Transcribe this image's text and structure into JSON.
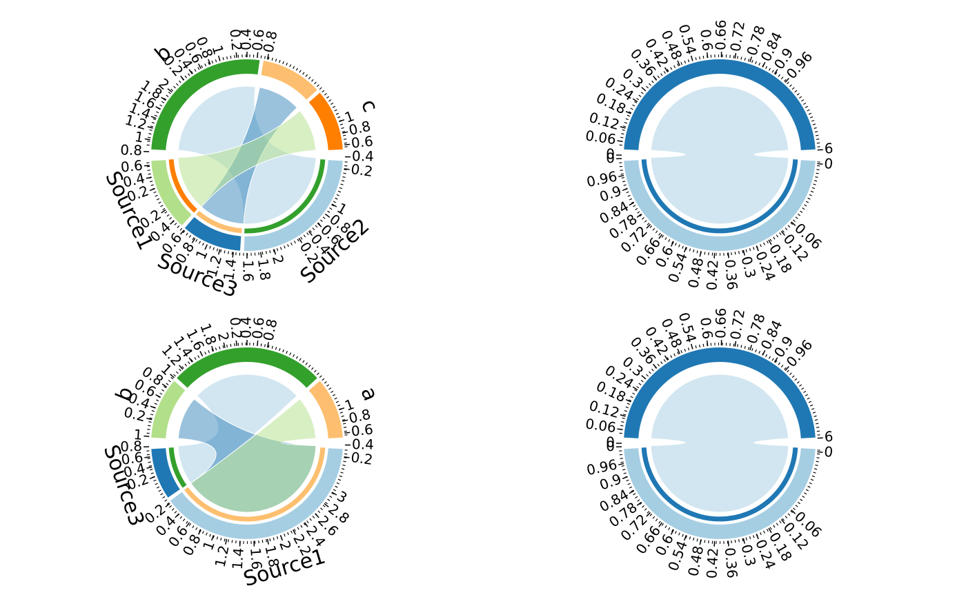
{
  "colors": {
    "dark_green": "#33a02c",
    "light_green": "#b2df8a",
    "dark_orange": "#ff7f00",
    "light_orange": "#fdbf6f",
    "dark_blue": "#1f78b4",
    "light_blue": "#a6cee3",
    "link_blue": "#a6cee3",
    "link_blue_strong": "#1f78b4",
    "link_green": "#b2df8a"
  },
  "chart_data": [
    {
      "type": "chord",
      "panel": "top-left",
      "upper_sectors": [
        {
          "label": "b",
          "value": 1,
          "color": "#33a02c"
        },
        {
          "label": "",
          "value": 0.4,
          "color": "#fdbf6f"
        },
        {
          "label": "c",
          "value": 0.4,
          "color": "#ff7f00"
        }
      ],
      "lower_sectors": [
        {
          "label": "Source1",
          "value": 0.6,
          "color": "#b2df8a"
        },
        {
          "label": "Source3",
          "value": 0.5,
          "color": "#1f78b4"
        },
        {
          "label": "Source2",
          "value": 1.2,
          "color": "#a6cee3"
        }
      ],
      "links": [
        {
          "from": "Source2",
          "to": "b",
          "value": 1
        },
        {
          "from": "Source3",
          "to": "",
          "value": 0.3
        },
        {
          "from": "Source1",
          "to": "c",
          "value": 0.4
        }
      ],
      "upper_ticks_text": "0.2 0.4 0.6 0.8 1 1.2 1.4 1.6 1.8 2 0.2 0.4 0.6 0.8 1 0.2 0.4 0.6 0.8",
      "lower_ticks_text": "1 0.8 0.6 0.4 0.2 1 0.8 0.6 0.4 0.2 2 1.8 1.6 1.4 1.2 1 0.8 0.6 0.4 0.2",
      "upper_ticks": [
        {
          "t": "0.2",
          "a": 200
        },
        {
          "t": "0.4",
          "a": 193
        },
        {
          "t": "0.6",
          "a": 186
        },
        {
          "t": "0.8",
          "a": 178
        },
        {
          "t": "1",
          "a": 171
        },
        {
          "t": "1.2",
          "a": 164
        },
        {
          "t": "1.4",
          "a": 158
        },
        {
          "t": "1.6",
          "a": 152
        },
        {
          "t": "1.8",
          "a": 146
        },
        {
          "t": "2",
          "a": 140
        },
        {
          "t": "0.2",
          "a": 130
        },
        {
          "t": "0.4",
          "a": 124
        },
        {
          "t": "0.6",
          "a": 118
        },
        {
          "t": "0.8",
          "a": 112
        },
        {
          "t": "1",
          "a": 106
        },
        {
          "t": "0.2",
          "a": 96
        },
        {
          "t": "0.4",
          "a": 90
        },
        {
          "t": "0.6",
          "a": 84
        },
        {
          "t": "0.8",
          "a": 78
        }
      ],
      "lower_ticks": [
        {
          "t": "1",
          "a": 20
        },
        {
          "t": "0.8",
          "a": 13
        },
        {
          "t": "0.6",
          "a": 6
        },
        {
          "t": "0.4",
          "a": -1
        },
        {
          "t": "0.2",
          "a": -8
        },
        {
          "t": "1",
          "a": -30
        },
        {
          "t": "0.8",
          "a": -37
        },
        {
          "t": "0.6",
          "a": -44
        },
        {
          "t": "0.4",
          "a": -51
        },
        {
          "t": "0.2",
          "a": -58
        },
        {
          "t": "2",
          "a": -74
        },
        {
          "t": "1.8",
          "a": -82
        },
        {
          "t": "1.6",
          "a": -90
        },
        {
          "t": "1.4",
          "a": -98
        },
        {
          "t": "1.2",
          "a": -106
        },
        {
          "t": "1",
          "a": -114
        },
        {
          "t": "0.8",
          "a": -122
        },
        {
          "t": "0.6",
          "a": -130
        },
        {
          "t": "0.4",
          "a": -138
        },
        {
          "t": "0.2",
          "a": -146
        }
      ]
    },
    {
      "type": "chord",
      "panel": "bottom-left",
      "upper_sectors": [
        {
          "label": "b",
          "value": 0.4,
          "color": "#b2df8a"
        },
        {
          "label": "",
          "value": 1,
          "color": "#33a02c"
        },
        {
          "label": "a",
          "value": 0.4,
          "color": "#fdbf6f"
        }
      ],
      "lower_sectors": [
        {
          "label": "Source3",
          "value": 0.5,
          "color": "#1f78b4"
        },
        {
          "label": "Source1",
          "value": 2.2,
          "color": "#a6cee3"
        }
      ],
      "links": [
        {
          "from": "Source3",
          "to": "",
          "value": 0.5
        },
        {
          "from": "Source1",
          "to": "b",
          "value": 0.4
        },
        {
          "from": "Source1",
          "to": "a",
          "value": 0.4
        }
      ],
      "upper_ticks_text": "0.2 0.4 0.6 0.8 1 0.2 0.4 0.6 0.8 1 1.2 1.4 1.6 1.8 2 0.2 0.4 0.6 0.8",
      "lower_ticks_text": "1 0.8 0.6 0.4 0.2 3 2.8 2.6 2.4 2.2 2 1.8 1.6 1.4 1.2 1 0.8 0.6 0.4 0.2",
      "upper_ticks": [
        {
          "t": "0.2",
          "a": 200
        },
        {
          "t": "0.4",
          "a": 194
        },
        {
          "t": "0.6",
          "a": 188
        },
        {
          "t": "0.8",
          "a": 182
        },
        {
          "t": "1",
          "a": 176
        },
        {
          "t": "0.2",
          "a": 166
        },
        {
          "t": "0.4",
          "a": 159
        },
        {
          "t": "0.6",
          "a": 152
        },
        {
          "t": "0.8",
          "a": 145
        },
        {
          "t": "1",
          "a": 138
        },
        {
          "t": "1.2",
          "a": 131
        },
        {
          "t": "1.4",
          "a": 124
        },
        {
          "t": "1.6",
          "a": 117
        },
        {
          "t": "1.8",
          "a": 110
        },
        {
          "t": "2",
          "a": 103
        },
        {
          "t": "0.2",
          "a": 96
        },
        {
          "t": "0.4",
          "a": 90
        },
        {
          "t": "0.6",
          "a": 84
        },
        {
          "t": "0.8",
          "a": 78
        }
      ],
      "lower_ticks": [
        {
          "t": "1",
          "a": 20
        },
        {
          "t": "0.8",
          "a": 13
        },
        {
          "t": "0.6",
          "a": 6
        },
        {
          "t": "0.4",
          "a": -1
        },
        {
          "t": "0.2",
          "a": -8
        },
        {
          "t": "3",
          "a": -30
        },
        {
          "t": "2.8",
          "a": -38
        },
        {
          "t": "2.6",
          "a": -46
        },
        {
          "t": "2.4",
          "a": -54
        },
        {
          "t": "2.2",
          "a": -62
        },
        {
          "t": "2",
          "a": -70
        },
        {
          "t": "1.8",
          "a": -78
        },
        {
          "t": "1.6",
          "a": -86
        },
        {
          "t": "1.4",
          "a": -94
        },
        {
          "t": "1.2",
          "a": -102
        },
        {
          "t": "1",
          "a": -110
        },
        {
          "t": "0.8",
          "a": -118
        },
        {
          "t": "0.6",
          "a": -126
        },
        {
          "t": "0.4",
          "a": -134
        },
        {
          "t": "0.2",
          "a": -142
        }
      ]
    },
    {
      "type": "chord",
      "panel": "top-right",
      "upper_sectors": [
        {
          "label": "",
          "value": 1,
          "color": "#1f78b4"
        }
      ],
      "lower_sectors": [
        {
          "label": "",
          "value": 1,
          "color": "#a6cee3"
        }
      ],
      "links": [
        {
          "from": "lower",
          "to": "upper",
          "value": 1
        }
      ],
      "upper_ticks_text": "0 0.06 0.12 0.18 0.24 0.3 0.36 0.42 0.48 0.54 0.6 0.66 0.72 0.78 0.84 0.9 0.96",
      "lower_ticks_text": "0.96 0.9 0.84 0.78 0.72 0.66 0.6 0.54 0.48 0.42 0.36 0.3 0.24 0.18 0.12 0.06 0",
      "upper_ticks": [
        {
          "t": "0",
          "a": 180
        },
        {
          "t": "0.06",
          "a": 172
        },
        {
          "t": "0.12",
          "a": 164
        },
        {
          "t": "0.18",
          "a": 155
        },
        {
          "t": "0.24",
          "a": 147
        },
        {
          "t": "0.3",
          "a": 139
        },
        {
          "t": "0.36",
          "a": 130
        },
        {
          "t": "0.42",
          "a": 122
        },
        {
          "t": "0.48",
          "a": 114
        },
        {
          "t": "0.54",
          "a": 106
        },
        {
          "t": "0.6",
          "a": 97
        },
        {
          "t": "0.66",
          "a": 89
        },
        {
          "t": "0.72",
          "a": 81
        },
        {
          "t": "0.78",
          "a": 72
        },
        {
          "t": "0.84",
          "a": 64
        },
        {
          "t": "0.9",
          "a": 56
        },
        {
          "t": "0.96",
          "a": 48
        },
        {
          "t": "6",
          "a": 3
        }
      ],
      "lower_ticks": [
        {
          "t": "0",
          "a": -178
        },
        {
          "t": "0.96",
          "a": -168
        },
        {
          "t": "0.9",
          "a": -160
        },
        {
          "t": "0.84",
          "a": -151
        },
        {
          "t": "0.78",
          "a": -143
        },
        {
          "t": "0.72",
          "a": -135
        },
        {
          "t": "0.66",
          "a": -126
        },
        {
          "t": "0.6",
          "a": -118
        },
        {
          "t": "0.54",
          "a": -110
        },
        {
          "t": "0.48",
          "a": -101
        },
        {
          "t": "0.42",
          "a": -93
        },
        {
          "t": "0.36",
          "a": -85
        },
        {
          "t": "0.3",
          "a": -76
        },
        {
          "t": "0.24",
          "a": -68
        },
        {
          "t": "0.18",
          "a": -60
        },
        {
          "t": "0.12",
          "a": -51
        },
        {
          "t": "0.06",
          "a": -43
        },
        {
          "t": "0",
          "a": -5
        }
      ]
    },
    {
      "type": "chord",
      "panel": "bottom-right",
      "upper_sectors": [
        {
          "label": "",
          "value": 1,
          "color": "#1f78b4"
        }
      ],
      "lower_sectors": [
        {
          "label": "",
          "value": 1,
          "color": "#a6cee3"
        }
      ],
      "links": [
        {
          "from": "lower",
          "to": "upper",
          "value": 1
        }
      ],
      "upper_ticks_text": "0 0.06 0.12 0.18 0.24 0.3 0.36 0.42 0.48 0.54 0.6 0.66 0.72 0.78 0.84 0.9 0.96",
      "lower_ticks_text": "0.96 0.9 0.84 0.78 0.72 0.66 0.6 0.54 0.48 0.42 0.36 0.3 0.24 0.18 0.12 0.06 0",
      "upper_ticks": [
        {
          "t": "0",
          "a": 180
        },
        {
          "t": "0.06",
          "a": 172
        },
        {
          "t": "0.12",
          "a": 164
        },
        {
          "t": "0.18",
          "a": 155
        },
        {
          "t": "0.24",
          "a": 147
        },
        {
          "t": "0.3",
          "a": 139
        },
        {
          "t": "0.36",
          "a": 130
        },
        {
          "t": "0.42",
          "a": 122
        },
        {
          "t": "0.48",
          "a": 114
        },
        {
          "t": "0.54",
          "a": 106
        },
        {
          "t": "0.6",
          "a": 97
        },
        {
          "t": "0.66",
          "a": 89
        },
        {
          "t": "0.72",
          "a": 81
        },
        {
          "t": "0.78",
          "a": 72
        },
        {
          "t": "0.84",
          "a": 64
        },
        {
          "t": "0.9",
          "a": 56
        },
        {
          "t": "0.96",
          "a": 48
        },
        {
          "t": "6",
          "a": 3
        }
      ],
      "lower_ticks": [
        {
          "t": "0",
          "a": -178
        },
        {
          "t": "0.96",
          "a": -168
        },
        {
          "t": "0.9",
          "a": -160
        },
        {
          "t": "0.84",
          "a": -151
        },
        {
          "t": "0.78",
          "a": -143
        },
        {
          "t": "0.72",
          "a": -135
        },
        {
          "t": "0.66",
          "a": -126
        },
        {
          "t": "0.6",
          "a": -118
        },
        {
          "t": "0.54",
          "a": -110
        },
        {
          "t": "0.48",
          "a": -101
        },
        {
          "t": "0.42",
          "a": -93
        },
        {
          "t": "0.36",
          "a": -85
        },
        {
          "t": "0.3",
          "a": -76
        },
        {
          "t": "0.24",
          "a": -68
        },
        {
          "t": "0.18",
          "a": -60
        },
        {
          "t": "0.12",
          "a": -51
        },
        {
          "t": "0.06",
          "a": -43
        },
        {
          "t": "0",
          "a": -5
        }
      ]
    }
  ]
}
